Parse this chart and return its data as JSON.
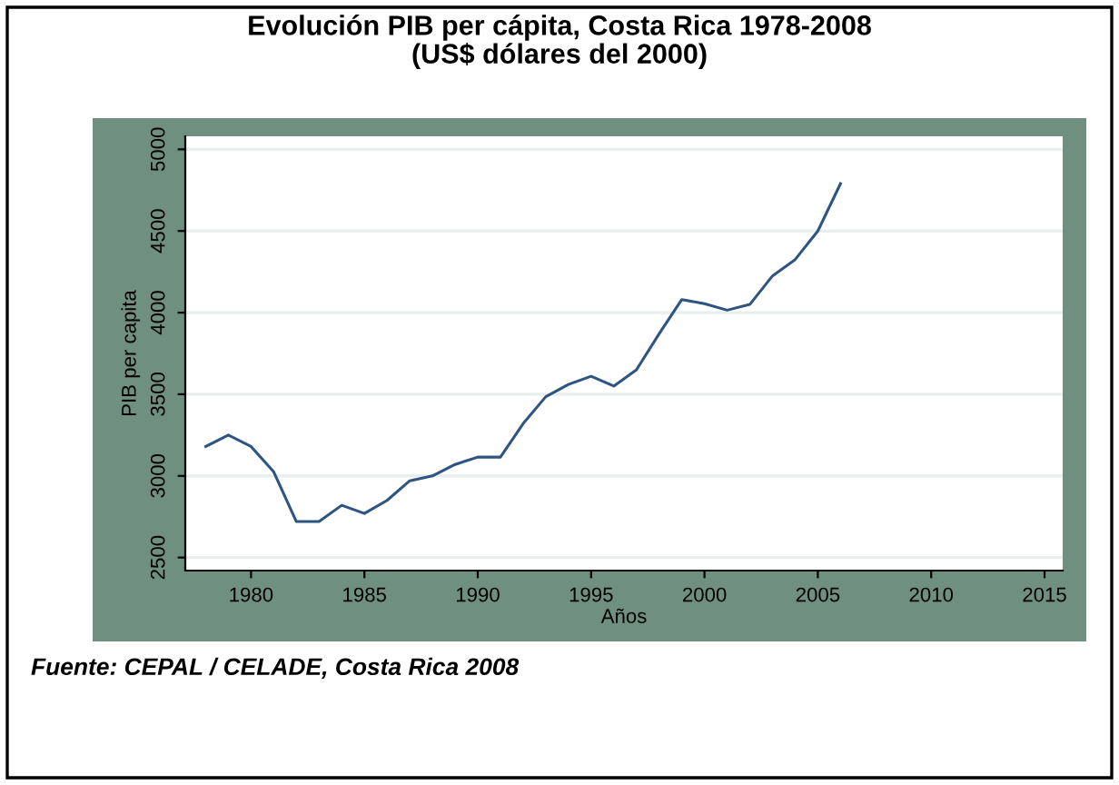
{
  "chart_data": {
    "type": "line",
    "title": "Evolución PIB per cápita, Costa Rica 1978-2008\n(US$ dólares del 2000)",
    "xlabel": "Años",
    "ylabel": "PIB per capita",
    "x": [
      1978,
      1979,
      1980,
      1981,
      1982,
      1983,
      1984,
      1985,
      1986,
      1987,
      1988,
      1989,
      1990,
      1991,
      1992,
      1993,
      1994,
      1995,
      1996,
      1997,
      1998,
      1999,
      2000,
      2001,
      2002,
      2003,
      2004,
      2005,
      2006
    ],
    "series": [
      {
        "color": "#2e5582",
        "values": [
          3180,
          3250,
          3180,
          3025,
          2720,
          2720,
          2820,
          2770,
          2850,
          2970,
          3000,
          3070,
          3115,
          3115,
          3320,
          3485,
          3560,
          3610,
          3550,
          3650,
          3870,
          4080,
          4055,
          4015,
          4050,
          4225,
          4325,
          4500,
          4790
        ]
      }
    ],
    "xlim": [
      1977.1,
      2015.8
    ],
    "ylim": [
      2420,
      5080
    ],
    "xticks": [
      1980,
      1985,
      1990,
      1995,
      2000,
      2005,
      2010,
      2015
    ],
    "yticks": [
      2500,
      3000,
      3500,
      4000,
      4500,
      5000
    ],
    "grid": "y",
    "marker": "none",
    "line_style": "solid",
    "annotations": [
      "Fuente: CEPAL / CELADE, Costa Rica 2008"
    ]
  }
}
